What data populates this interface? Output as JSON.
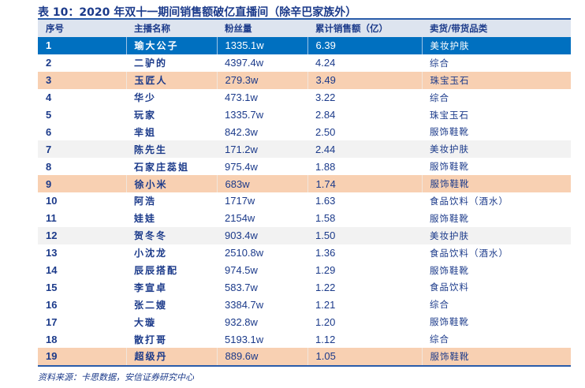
{
  "title": "表 10：2020 年双十一期间销售额破亿直播间（除辛巴家族外）",
  "columns": [
    "序号",
    "主播名称",
    "粉丝量",
    "累计销售额（亿）",
    "卖货/带货品类"
  ],
  "rows": [
    {
      "no": "1",
      "name": "瑜大公子",
      "fans": "1335.1w",
      "sales": "6.39",
      "cat": "美妆护肤",
      "style": "blue"
    },
    {
      "no": "2",
      "name": "二驴的",
      "fans": "4397.4w",
      "sales": "4.24",
      "cat": "综合",
      "style": ""
    },
    {
      "no": "3",
      "name": "玉匠人",
      "fans": "279.3w",
      "sales": "3.49",
      "cat": "珠宝玉石",
      "style": "peach"
    },
    {
      "no": "4",
      "name": "华少",
      "fans": "473.1w",
      "sales": "3.22",
      "cat": "综合",
      "style": ""
    },
    {
      "no": "5",
      "name": "玩家",
      "fans": "1335.7w",
      "sales": "2.84",
      "cat": "珠宝玉石",
      "style": ""
    },
    {
      "no": "6",
      "name": "芈姐",
      "fans": "842.3w",
      "sales": "2.50",
      "cat": "服饰鞋靴",
      "style": ""
    },
    {
      "no": "7",
      "name": "陈先生",
      "fans": "171.2w",
      "sales": "2.44",
      "cat": "美妆护肤",
      "style": "gray"
    },
    {
      "no": "8",
      "name": "石家庄蕊姐",
      "fans": "975.4w",
      "sales": "1.88",
      "cat": "服饰鞋靴",
      "style": ""
    },
    {
      "no": "9",
      "name": "徐小米",
      "fans": "683w",
      "sales": "1.74",
      "cat": "服饰鞋靴",
      "style": "peach"
    },
    {
      "no": "10",
      "name": "阿浩",
      "fans": "1717w",
      "sales": "1.63",
      "cat": "食品饮料（酒水）",
      "style": ""
    },
    {
      "no": "11",
      "name": "娃娃",
      "fans": "2154w",
      "sales": "1.58",
      "cat": "服饰鞋靴",
      "style": ""
    },
    {
      "no": "12",
      "name": "贺冬冬",
      "fans": "903.4w",
      "sales": "1.50",
      "cat": "美妆护肤",
      "style": "gray"
    },
    {
      "no": "13",
      "name": "小沈龙",
      "fans": "2510.8w",
      "sales": "1.36",
      "cat": "食品饮料（酒水）",
      "style": ""
    },
    {
      "no": "14",
      "name": "辰辰搭配",
      "fans": "974.5w",
      "sales": "1.29",
      "cat": "服饰鞋靴",
      "style": ""
    },
    {
      "no": "15",
      "name": "李宣卓",
      "fans": "583.7w",
      "sales": "1.22",
      "cat": "食品饮料",
      "style": ""
    },
    {
      "no": "16",
      "name": "张二嫂",
      "fans": "3384.7w",
      "sales": "1.21",
      "cat": "综合",
      "style": ""
    },
    {
      "no": "17",
      "name": "大璇",
      "fans": "932.8w",
      "sales": "1.20",
      "cat": "服饰鞋靴",
      "style": ""
    },
    {
      "no": "18",
      "name": "散打哥",
      "fans": "5193.1w",
      "sales": "1.12",
      "cat": "综合",
      "style": ""
    },
    {
      "no": "19",
      "name": "超级丹",
      "fans": "889.6w",
      "sales": "1.05",
      "cat": "服饰鞋靴",
      "style": "peach"
    }
  ],
  "source": "资料来源：卡思数据，安信证券研究中心",
  "colors": {
    "text": "#1b3a8a",
    "header_bg": "#dde4ef",
    "highlight_blue": "#0070c0",
    "highlight_peach": "#f8d0b2",
    "row_gray": "#f2f2f2"
  }
}
